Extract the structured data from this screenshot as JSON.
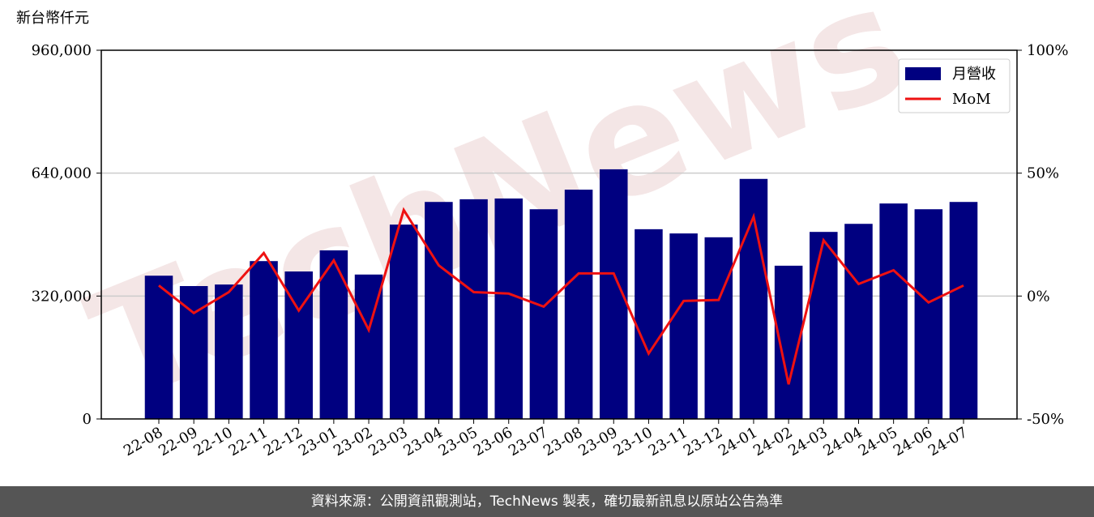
{
  "chart_data": {
    "type": "bar_line",
    "y_label": "新台幣仟元",
    "watermark": "TechNews",
    "categories": [
      "22-08",
      "22-09",
      "22-10",
      "22-11",
      "22-12",
      "23-01",
      "23-02",
      "23-03",
      "23-04",
      "23-05",
      "23-06",
      "23-07",
      "23-08",
      "23-09",
      "23-10",
      "23-11",
      "23-12",
      "24-01",
      "24-02",
      "24-03",
      "24-04",
      "24-05",
      "24-06",
      "24-07"
    ],
    "series": [
      {
        "name": "月營收",
        "type": "bar",
        "color": "#000080",
        "values": [
          373000,
          346000,
          350000,
          411000,
          384000,
          439000,
          376000,
          506000,
          565000,
          572000,
          574000,
          546000,
          597000,
          650000,
          494000,
          483000,
          473000,
          625000,
          399000,
          487000,
          508000,
          561000,
          546000,
          565000
        ]
      },
      {
        "name": "MoM",
        "type": "line",
        "axis": "y2",
        "color": "#ee1111",
        "values": [
          4.3,
          -6.9,
          1.6,
          17.5,
          -5.9,
          14.5,
          -13.8,
          35,
          12.5,
          1.6,
          1,
          -4.3,
          9.2,
          9.2,
          -23.4,
          -2,
          -1.6,
          32.3,
          -35.9,
          22.7,
          4.9,
          10.5,
          -2.6,
          4.3
        ]
      }
    ],
    "ylim": [
      0,
      960000
    ],
    "yticks": [
      0,
      {
        "value": 320000,
        "label": "320,000"
      },
      {
        "value": 640000,
        "label": "640,000"
      },
      {
        "value": 960000,
        "label": "960,000"
      }
    ],
    "y2lim": [
      -50,
      100
    ],
    "y2ticks": [
      {
        "value": -50,
        "label": "-50%"
      },
      {
        "value": 0,
        "label": "0%"
      },
      {
        "value": 50,
        "label": "50%"
      },
      {
        "value": 100,
        "label": "100%"
      }
    ],
    "grid": true,
    "legend": "upper right"
  },
  "footer": "資料來源：公開資訊觀測站，TechNews 製表，確切最新訊息以原站公告為準"
}
